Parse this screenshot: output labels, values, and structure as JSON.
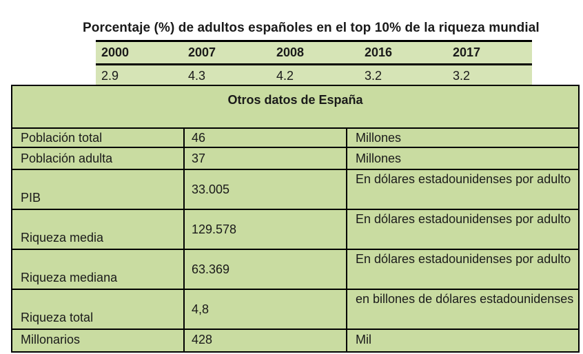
{
  "title": "Porcentaje (%) de adultos españoles en el top 10% de la riqueza mundial",
  "top_table": {
    "years": [
      "2000",
      "2007",
      "2008",
      "2016",
      "2017"
    ],
    "values": [
      "2.9",
      "4.3",
      "4.2",
      "3.2",
      "3.2"
    ]
  },
  "main_table": {
    "heading": "Otros datos de España",
    "rows": [
      {
        "label": "Población total",
        "value": "46",
        "unit": "Millones"
      },
      {
        "label": "Población adulta",
        "value": "37",
        "unit": "Millones"
      },
      {
        "label": "PIB",
        "value": "33.005",
        "unit": "En dólares estadounidenses por adulto"
      },
      {
        "label": "Riqueza media",
        "value": "129.578",
        "unit": "En dólares estadounidenses por adulto"
      },
      {
        "label": "Riqueza mediana",
        "value": "63.369",
        "unit": "En dólares estadounidenses por adulto"
      },
      {
        "label": "Riqueza total",
        "value": "4,8",
        "unit": "en billones de dólares estadounidenses"
      },
      {
        "label": "Millonarios",
        "value": "428",
        "unit": "Mil"
      }
    ]
  }
}
